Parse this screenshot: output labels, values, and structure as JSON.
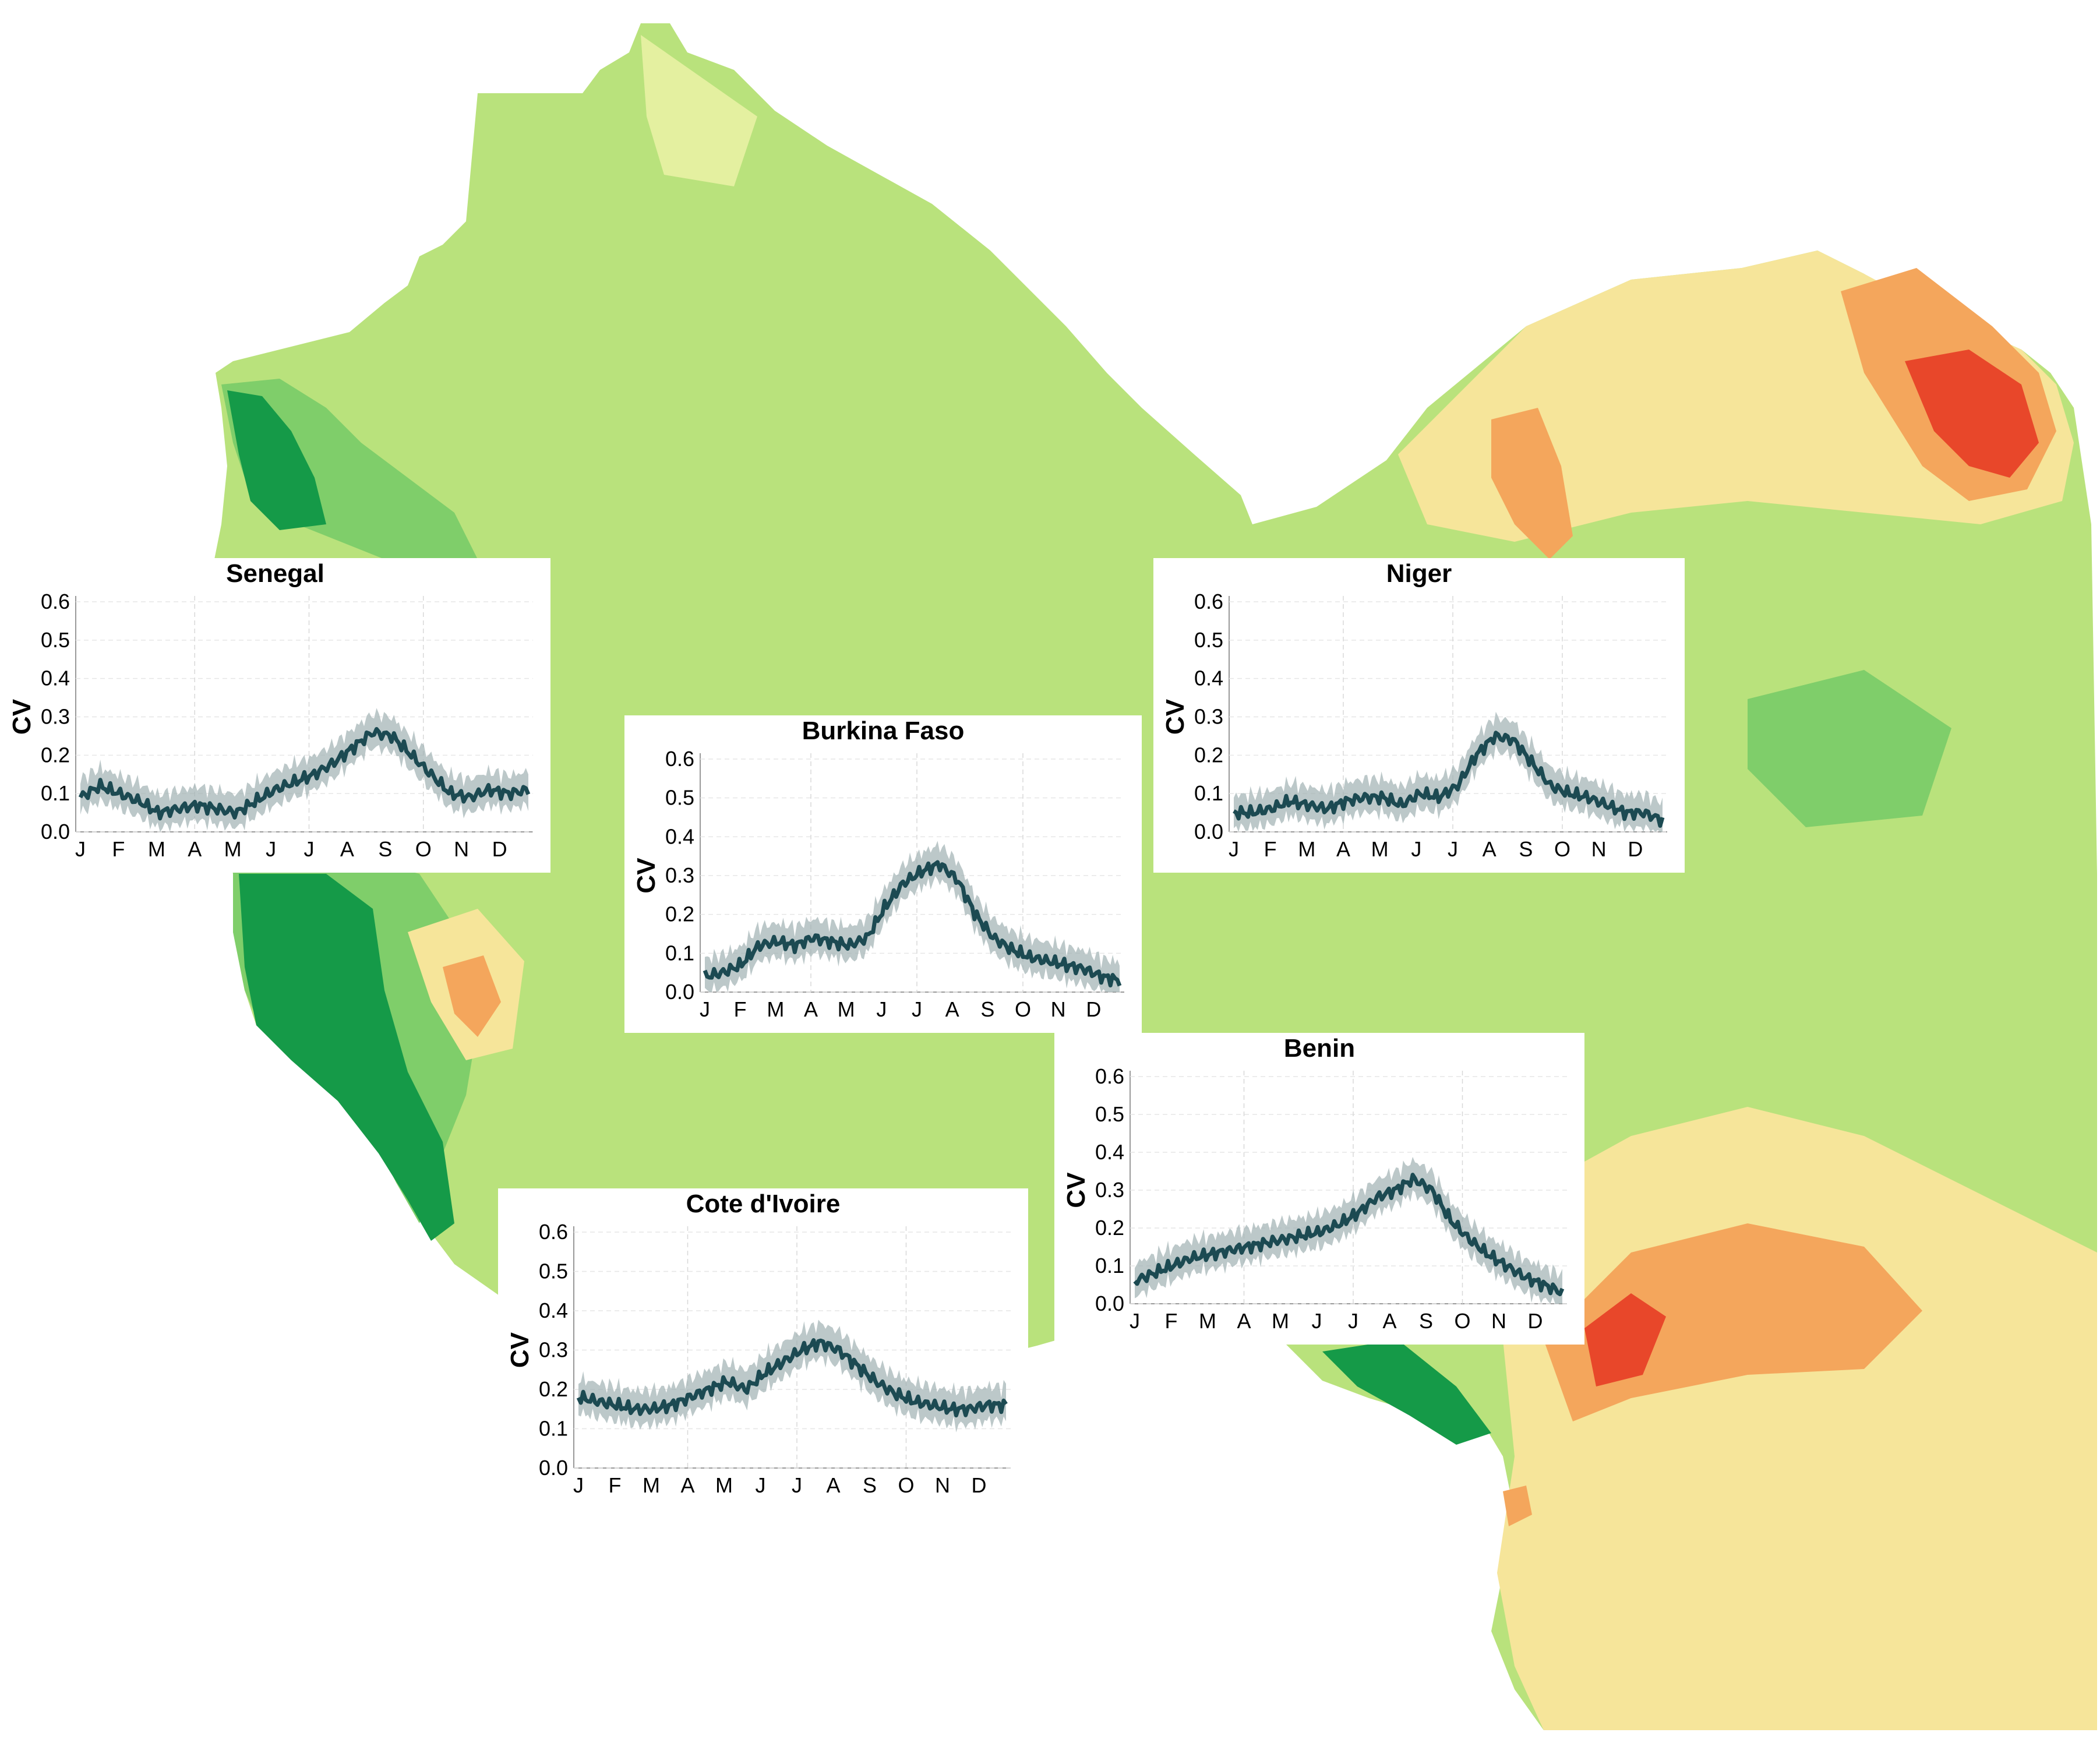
{
  "colors": {
    "desert_green": "#b9e27c",
    "light_green": "#c9e98c",
    "pale_yellow": "#e4f0a0",
    "yellow": "#f6e59a",
    "orange": "#f4a65c",
    "red": "#e8472a",
    "mid_green": "#7fce6a",
    "dark_green": "#159a48",
    "curve": "#1c4a52",
    "band": "#9fb0b2"
  },
  "map": {
    "features": [
      "terrain-raster",
      "west-africa-landmass"
    ]
  },
  "chart_data": [
    {
      "type": "line",
      "title": "Senegal",
      "ylabel": "CV",
      "ylim": [
        0,
        0.6
      ],
      "yticks": [
        "0.0",
        "0.1",
        "0.2",
        "0.3",
        "0.4",
        "0.5",
        "0.6"
      ],
      "months": [
        "J",
        "F",
        "M",
        "A",
        "M",
        "J",
        "J",
        "A",
        "S",
        "O",
        "N",
        "D"
      ],
      "series": [
        {
          "values": [
            0.09,
            0.12,
            0.1,
            0.08,
            0.05,
            0.06,
            0.07,
            0.06,
            0.05,
            0.08,
            0.11,
            0.13,
            0.15,
            0.18,
            0.22,
            0.26,
            0.25,
            0.2,
            0.15,
            0.1,
            0.09,
            0.11,
            0.1,
            0.11
          ]
        }
      ]
    },
    {
      "type": "line",
      "title": "Burkina Faso",
      "ylabel": "CV",
      "ylim": [
        0,
        0.6
      ],
      "yticks": [
        "0.0",
        "0.1",
        "0.2",
        "0.3",
        "0.4",
        "0.5",
        "0.6"
      ],
      "months": [
        "J",
        "F",
        "M",
        "A",
        "M",
        "J",
        "J",
        "A",
        "S",
        "O",
        "N",
        "D"
      ],
      "series": [
        {
          "values": [
            0.04,
            0.05,
            0.07,
            0.12,
            0.13,
            0.12,
            0.14,
            0.13,
            0.12,
            0.14,
            0.22,
            0.28,
            0.31,
            0.33,
            0.29,
            0.2,
            0.14,
            0.11,
            0.09,
            0.08,
            0.07,
            0.06,
            0.04,
            0.03
          ]
        }
      ]
    },
    {
      "type": "line",
      "title": "Niger",
      "ylabel": "CV",
      "ylim": [
        0,
        0.6
      ],
      "yticks": [
        "0.0",
        "0.1",
        "0.2",
        "0.3",
        "0.4",
        "0.5",
        "0.6"
      ],
      "months": [
        "J",
        "F",
        "M",
        "A",
        "M",
        "J",
        "J",
        "A",
        "S",
        "O",
        "N",
        "D"
      ],
      "series": [
        {
          "values": [
            0.05,
            0.05,
            0.06,
            0.08,
            0.07,
            0.06,
            0.08,
            0.09,
            0.09,
            0.07,
            0.1,
            0.09,
            0.12,
            0.2,
            0.25,
            0.24,
            0.18,
            0.12,
            0.1,
            0.09,
            0.07,
            0.05,
            0.05,
            0.03
          ]
        }
      ]
    },
    {
      "type": "line",
      "title": "Benin",
      "ylabel": "CV",
      "ylim": [
        0,
        0.6
      ],
      "yticks": [
        "0.0",
        "0.1",
        "0.2",
        "0.3",
        "0.4",
        "0.5",
        "0.6"
      ],
      "months": [
        "J",
        "F",
        "M",
        "A",
        "M",
        "J",
        "J",
        "A",
        "S",
        "O",
        "N",
        "D"
      ],
      "series": [
        {
          "values": [
            0.06,
            0.08,
            0.1,
            0.12,
            0.13,
            0.14,
            0.15,
            0.16,
            0.17,
            0.18,
            0.19,
            0.21,
            0.24,
            0.28,
            0.3,
            0.33,
            0.3,
            0.22,
            0.17,
            0.13,
            0.1,
            0.07,
            0.05,
            0.03
          ]
        }
      ]
    },
    {
      "type": "line",
      "title": "Cote d'Ivoire",
      "ylabel": "CV",
      "ylim": [
        0,
        0.6
      ],
      "yticks": [
        "0.0",
        "0.1",
        "0.2",
        "0.3",
        "0.4",
        "0.5",
        "0.6"
      ],
      "months": [
        "J",
        "F",
        "M",
        "A",
        "M",
        "J",
        "J",
        "A",
        "S",
        "O",
        "N",
        "D"
      ],
      "series": [
        {
          "values": [
            0.18,
            0.17,
            0.16,
            0.15,
            0.15,
            0.16,
            0.18,
            0.2,
            0.22,
            0.2,
            0.24,
            0.27,
            0.3,
            0.32,
            0.3,
            0.26,
            0.22,
            0.19,
            0.17,
            0.16,
            0.15,
            0.15,
            0.16,
            0.16
          ]
        }
      ]
    }
  ]
}
